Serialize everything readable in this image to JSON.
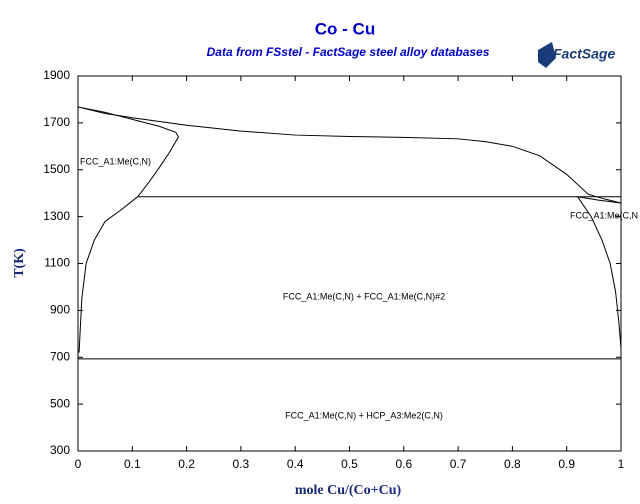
{
  "chart_data": {
    "type": "line",
    "title": "Co - Cu",
    "subtitle": "Data from FSstel - FactSage steel alloy databases",
    "logo": "FactSage",
    "x_label": "mole Cu/(Co+Cu)",
    "y_label": "T(K)",
    "xlim": [
      0,
      1
    ],
    "ylim": [
      300,
      1900
    ],
    "xticks": [
      0,
      0.1,
      0.2,
      0.3,
      0.4,
      0.5,
      0.6,
      0.7,
      0.8,
      0.9,
      1
    ],
    "yticks": [
      300,
      500,
      700,
      900,
      1100,
      1300,
      1500,
      1700,
      1900
    ],
    "series": [
      {
        "color": "#000000",
        "x": [
          0,
          0.05,
          0.1,
          0.2,
          0.3,
          0.4,
          0.5,
          0.6,
          0.7,
          0.75,
          0.8,
          0.85,
          0.9,
          0.94,
          0.97,
          1
        ],
        "values": [
          1768,
          1740,
          1722,
          1690,
          1665,
          1648,
          1642,
          1638,
          1632,
          1620,
          1600,
          1560,
          1480,
          1395,
          1375,
          1358
        ]
      },
      {
        "color": "#000000",
        "x": [
          0,
          0.05,
          0.1,
          0.15,
          0.18,
          0.185,
          0.17,
          0.15,
          0.13,
          0.11,
          0.08,
          0.05,
          0.03,
          0.015,
          0.007,
          0.002
        ],
        "values": [
          1768,
          1745,
          1715,
          1685,
          1660,
          1640,
          1580,
          1510,
          1445,
          1385,
          1330,
          1280,
          1200,
          1100,
          950,
          720
        ]
      },
      {
        "color": "#000000",
        "x": [
          0.11,
          1
        ],
        "values": [
          1385,
          1385
        ]
      },
      {
        "color": "#000000",
        "x": [
          0.92,
          0.96,
          1
        ],
        "values": [
          1385,
          1370,
          1358
        ]
      },
      {
        "color": "#000000",
        "x": [
          0.92,
          0.945,
          0.965,
          0.98,
          0.99,
          0.996,
          1
        ],
        "values": [
          1385,
          1300,
          1200,
          1100,
          980,
          850,
          740
        ]
      },
      {
        "color": "#000000",
        "x": [
          0,
          1
        ],
        "values": [
          693,
          693
        ]
      }
    ],
    "annotations": [
      "FCC_A1:Me(C,N)",
      "FCC_A1:Me(C,N",
      "FCC_A1:Me(C,N) + FCC_A1:Me(C,N)#2",
      "FCC_A1:Me(C,N) + HCP_A3:Me2(C,N)"
    ]
  }
}
